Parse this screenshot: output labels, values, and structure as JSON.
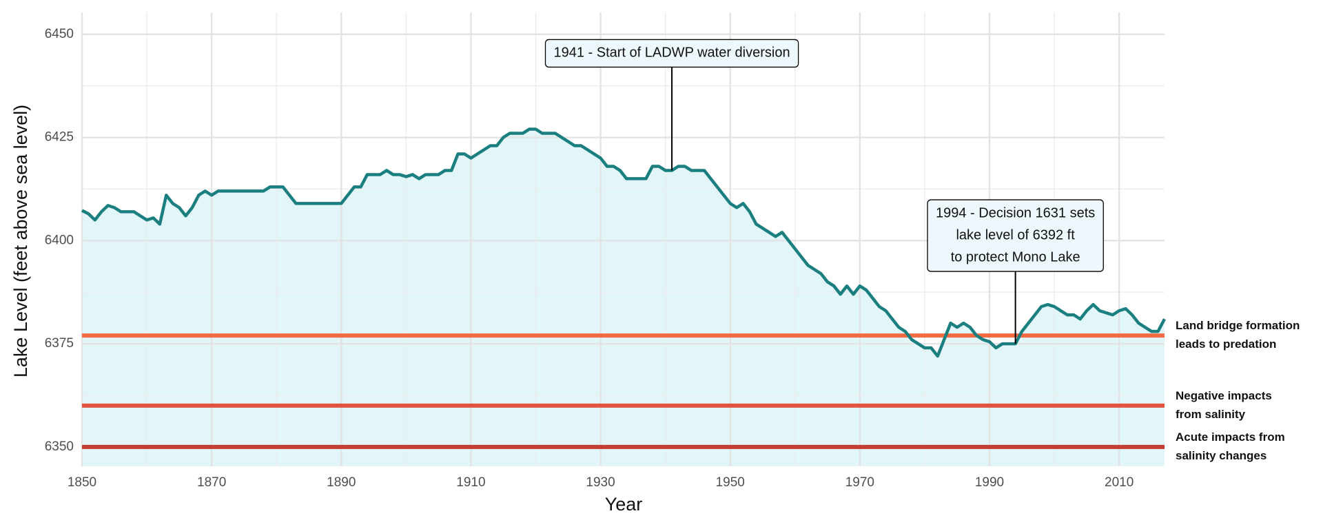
{
  "chart_data": {
    "type": "line",
    "x_label": "Year",
    "y_label": "Lake Level (feet above sea level)",
    "x": [
      1850,
      1851,
      1852,
      1853,
      1854,
      1855,
      1856,
      1857,
      1858,
      1859,
      1860,
      1861,
      1862,
      1863,
      1864,
      1865,
      1866,
      1867,
      1868,
      1869,
      1870,
      1871,
      1872,
      1873,
      1874,
      1875,
      1876,
      1877,
      1878,
      1879,
      1880,
      1881,
      1882,
      1883,
      1884,
      1885,
      1886,
      1887,
      1888,
      1889,
      1890,
      1891,
      1892,
      1893,
      1894,
      1895,
      1896,
      1897,
      1898,
      1899,
      1900,
      1901,
      1902,
      1903,
      1904,
      1905,
      1906,
      1907,
      1908,
      1909,
      1910,
      1911,
      1912,
      1913,
      1914,
      1915,
      1916,
      1917,
      1918,
      1919,
      1920,
      1921,
      1922,
      1923,
      1924,
      1925,
      1926,
      1927,
      1928,
      1929,
      1930,
      1931,
      1932,
      1933,
      1934,
      1935,
      1936,
      1937,
      1938,
      1939,
      1940,
      1941,
      1942,
      1943,
      1944,
      1945,
      1946,
      1947,
      1948,
      1949,
      1950,
      1951,
      1952,
      1953,
      1954,
      1955,
      1956,
      1957,
      1958,
      1959,
      1960,
      1961,
      1962,
      1963,
      1964,
      1965,
      1966,
      1967,
      1968,
      1969,
      1970,
      1971,
      1972,
      1973,
      1974,
      1975,
      1976,
      1977,
      1978,
      1979,
      1980,
      1981,
      1982,
      1983,
      1984,
      1985,
      1986,
      1987,
      1988,
      1989,
      1990,
      1991,
      1992,
      1993,
      1994,
      1995,
      1996,
      1997,
      1998,
      1999,
      2000,
      2001,
      2002,
      2003,
      2004,
      2005,
      2006,
      2007,
      2008,
      2009,
      2010,
      2011,
      2012,
      2013,
      2014,
      2015,
      2016,
      2017
    ],
    "values": [
      6407.3,
      6406.5,
      6405,
      6407,
      6408.5,
      6408,
      6407,
      6407,
      6407,
      6406,
      6405,
      6405.5,
      6404,
      6411,
      6409,
      6408,
      6406,
      6408,
      6411,
      6412,
      6411,
      6412,
      6412,
      6412,
      6412,
      6412,
      6412,
      6412,
      6412,
      6413,
      6413,
      6413,
      6411,
      6409,
      6409,
      6409,
      6409,
      6409,
      6409,
      6409,
      6409,
      6411,
      6413,
      6413,
      6416,
      6416,
      6416,
      6417,
      6416,
      6416,
      6415.5,
      6416,
      6415,
      6416,
      6416,
      6416,
      6417,
      6417,
      6421,
      6421,
      6420,
      6421,
      6422,
      6423,
      6423,
      6425,
      6426,
      6426,
      6426,
      6427,
      6427,
      6426,
      6426,
      6426,
      6425,
      6424,
      6423,
      6423,
      6422,
      6421,
      6420,
      6418,
      6418,
      6417,
      6415,
      6415,
      6415,
      6415,
      6418,
      6418,
      6417,
      6417,
      6418,
      6418,
      6417,
      6417,
      6417,
      6415,
      6413,
      6411,
      6409,
      6408,
      6409,
      6407,
      6404,
      6403,
      6402,
      6401,
      6402,
      6400,
      6398,
      6396,
      6394,
      6393,
      6392,
      6390,
      6389,
      6387,
      6389,
      6387,
      6389,
      6388,
      6386,
      6384,
      6383,
      6381,
      6379,
      6378,
      6376,
      6375,
      6374,
      6374,
      6372,
      6376,
      6380,
      6379,
      6380,
      6379,
      6377,
      6376,
      6375.5,
      6374,
      6375,
      6375,
      6375,
      6378,
      6380,
      6382,
      6384,
      6384.5,
      6384,
      6383,
      6382,
      6382,
      6381,
      6383,
      6384.5,
      6383,
      6382.5,
      6382,
      6383,
      6383.5,
      6382,
      6380,
      6379,
      6378,
      6378,
      6381
    ],
    "color": "#1b7f80",
    "area_color": "#e2f6f9",
    "xlim": [
      1850,
      2017
    ],
    "ylim": [
      6345.3,
      6455.3
    ],
    "xticks": [
      1850,
      1870,
      1890,
      1910,
      1930,
      1950,
      1970,
      1990,
      2010
    ],
    "yticks": [
      6350,
      6375,
      6400,
      6425,
      6450
    ],
    "x_minor_ticks": [
      1860,
      1880,
      1900,
      1920,
      1940,
      1960,
      1980,
      2000
    ],
    "y_minor_ticks": [
      6362.5,
      6387.5,
      6412.5,
      6437.5
    ],
    "grid": true,
    "reference_lines": [
      {
        "value": 6377,
        "color": "#f26b43",
        "label": [
          "Land bridge formation",
          "leads to predation"
        ]
      },
      {
        "value": 6360,
        "color": "#e0533f",
        "label": [
          "Negative impacts",
          "from salinity"
        ]
      },
      {
        "value": 6350,
        "color": "#c43d33",
        "label": [
          "Acute impacts from",
          "salinity changes"
        ]
      }
    ],
    "annotations": [
      {
        "x": 1941,
        "y": 6417,
        "lines": [
          "1941 - Start of LADWP water diversion"
        ]
      },
      {
        "x": 1994,
        "y": 6375,
        "lines": [
          "1994 - Decision 1631 sets",
          "lake level of 6392 ft",
          "to protect Mono Lake"
        ]
      }
    ]
  }
}
